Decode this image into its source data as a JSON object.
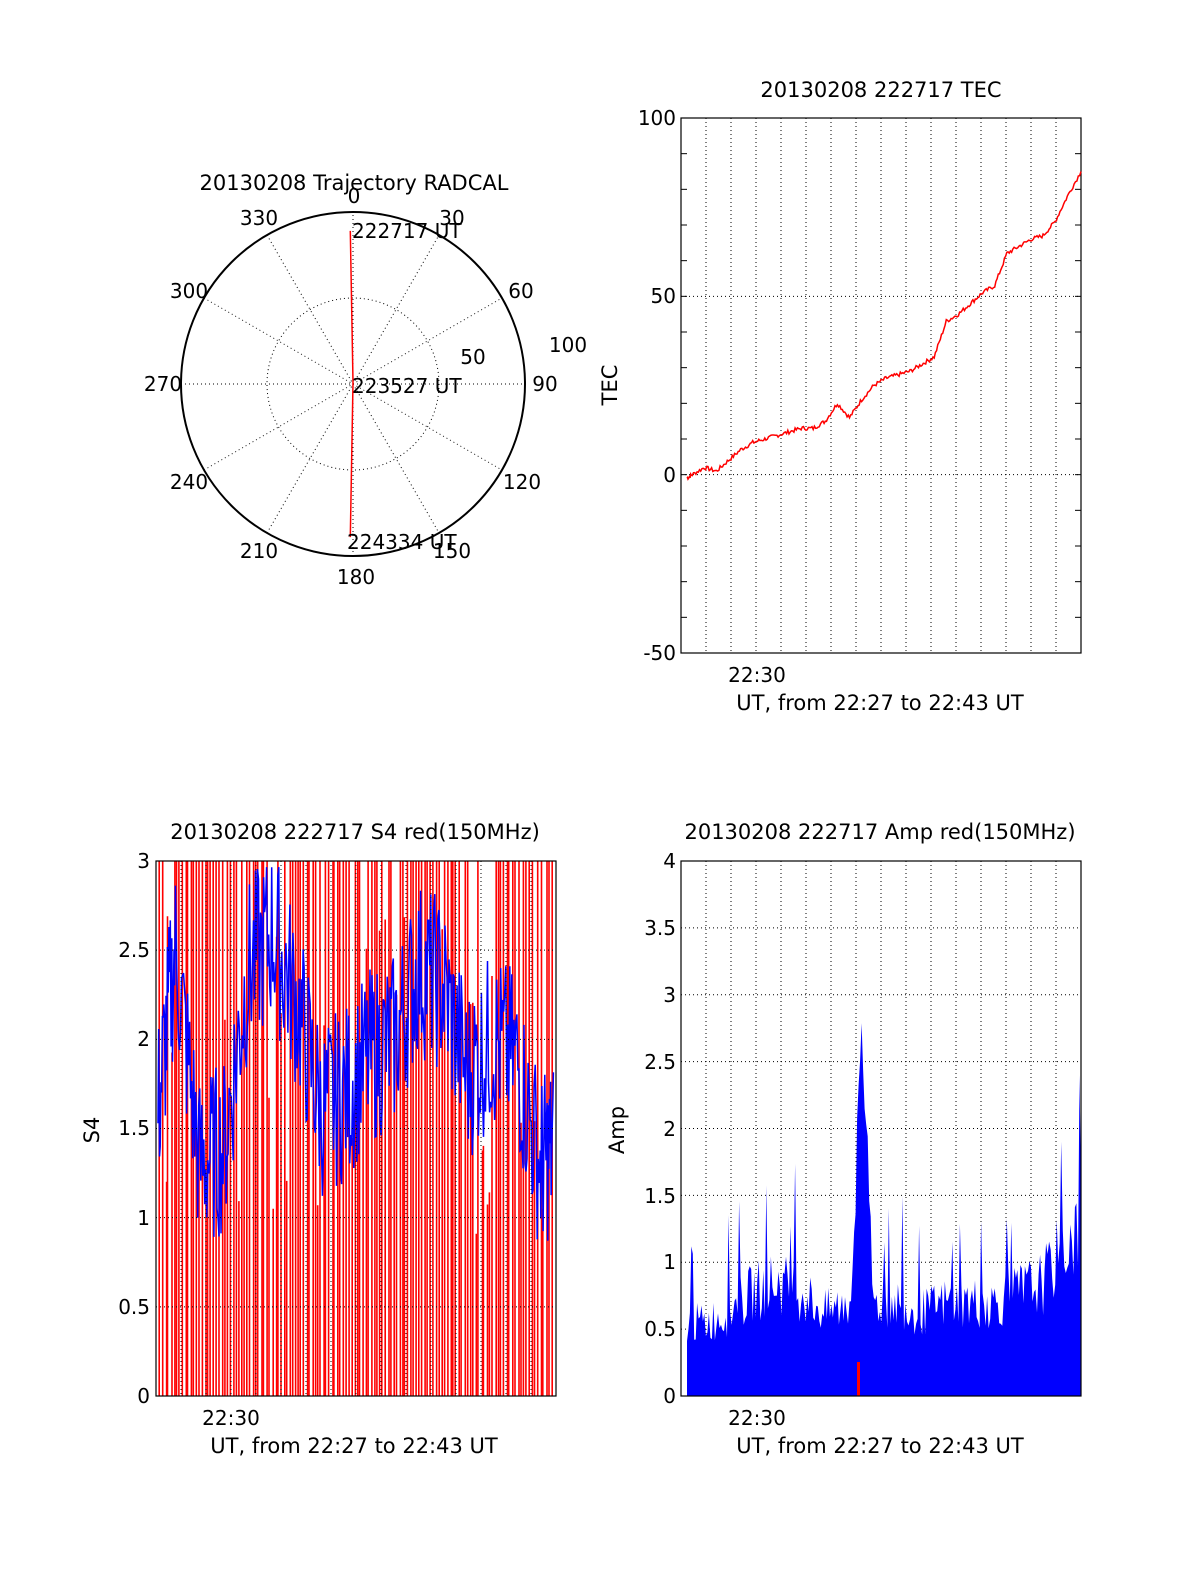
{
  "colors": {
    "red": "#ff0000",
    "blue": "#0000ff",
    "black": "#000000",
    "background": "#ffffff"
  },
  "polar": {
    "title": "20130208 Trajectory RADCAL",
    "azimuth_labels": [
      "0",
      "30",
      "60",
      "90",
      "120",
      "150",
      "180",
      "210",
      "240",
      "270",
      "300",
      "330"
    ],
    "radius_labels": [
      "50",
      "100"
    ],
    "time_labels": [
      "222717 UT",
      "223527 UT",
      "224334 UT"
    ]
  },
  "tec": {
    "title": "20130208 222717 TEC",
    "ylabel": "TEC",
    "xlabel": "UT, from 22:27 to 22:43 UT",
    "yticks": [
      "100",
      "50",
      "0",
      "-50"
    ],
    "xtick": "22:30"
  },
  "s4": {
    "title": "20130208 222717 S4 red(150MHz)",
    "ylabel": "S4",
    "xlabel": "UT, from 22:27 to 22:43 UT",
    "yticks": [
      "3",
      "2.5",
      "2",
      "1.5",
      "1",
      "0.5",
      "0"
    ],
    "xtick": "22:30"
  },
  "amp": {
    "title": "20130208 222717 Amp red(150MHz)",
    "ylabel": "Amp",
    "xlabel": "UT, from 22:27 to 22:43 UT",
    "yticks": [
      "4",
      "3.5",
      "3",
      "2.5",
      "2",
      "1.5",
      "1",
      "0.5",
      "0"
    ],
    "xtick": "22:30"
  },
  "chart_data": [
    {
      "type": "scatter",
      "title": "20130208 Trajectory RADCAL",
      "projection": "polar",
      "theta_unit": "degrees azimuth",
      "r_unit": "degrees from zenith",
      "rlim": [
        0,
        100
      ],
      "grid": true,
      "series": [
        {
          "points": [
            {
              "t": "222717 UT",
              "az": 359,
              "r": 89
            },
            {
              "t": "223527 UT",
              "az": 0,
              "r": 1
            },
            {
              "t": "224334 UT",
              "az": 181,
              "r": 89
            }
          ]
        }
      ]
    },
    {
      "type": "line",
      "title": "20130208 222717 TEC",
      "xlabel": "UT, from 22:27 to 22:43 UT",
      "ylabel": "TEC",
      "xlim": [
        "22:27:17",
        "22:43:34"
      ],
      "ylim": [
        -50,
        100
      ],
      "grid": true,
      "x": [
        "22:27:17",
        "22:27:30",
        "22:28:00",
        "22:28:30",
        "22:29:00",
        "22:29:30",
        "22:30:00",
        "22:30:30",
        "22:31:00",
        "22:31:30",
        "22:32:00",
        "22:32:30",
        "22:33:00",
        "22:33:30",
        "22:34:00",
        "22:34:30",
        "22:35:00",
        "22:35:30",
        "22:36:00",
        "22:36:30",
        "22:37:00",
        "22:37:30",
        "22:38:00",
        "22:38:30",
        "22:39:00",
        "22:39:30",
        "22:40:00",
        "22:40:30",
        "22:41:00",
        "22:41:30",
        "22:42:00",
        "22:42:30",
        "22:43:00",
        "22:43:34"
      ],
      "series": [
        {
          "values": [
            -1,
            0,
            2,
            1,
            4,
            7,
            9,
            10,
            11,
            12,
            13,
            13,
            15,
            20,
            16,
            21,
            25,
            27,
            28,
            29,
            31,
            33,
            43,
            45,
            48,
            51,
            53,
            62,
            64,
            66,
            67,
            71,
            78,
            85
          ]
        }
      ]
    },
    {
      "type": "line",
      "title": "20130208 222717 S4 red(150MHz)",
      "xlabel": "UT, from 22:27 to 22:43 UT",
      "ylabel": "S4",
      "xlim": [
        "22:27:17",
        "22:43:34"
      ],
      "ylim": [
        0,
        3
      ],
      "grid": true,
      "note_series": "red: raw S4 spikes spanning 0-3; blue: smoothed S4",
      "x": [
        "22:27:17",
        "22:28:00",
        "22:29:00",
        "22:30:00",
        "22:31:00",
        "22:32:00",
        "22:33:00",
        "22:34:00",
        "22:35:00",
        "22:36:00",
        "22:37:00",
        "22:38:00",
        "22:39:00",
        "22:40:00",
        "22:41:00",
        "22:42:00",
        "22:43:00",
        "22:43:34"
      ],
      "series": [
        {
          "values": [
            1.6,
            2.5,
            1.3,
            1.4,
            2.4,
            2.6,
            2.2,
            1.6,
            1.7,
            1.9,
            2.0,
            2.4,
            2.3,
            1.8,
            2.0,
            1.9,
            1.3,
            1.4
          ]
        },
        {
          "values": [
            3,
            0,
            3,
            0,
            3,
            0,
            3,
            0,
            3,
            0,
            3,
            0,
            3,
            0,
            3,
            0,
            3,
            0
          ]
        }
      ]
    },
    {
      "type": "line",
      "title": "20130208 222717 Amp red(150MHz)",
      "xlabel": "UT, from 22:27 to 22:43 UT",
      "ylabel": "Amp",
      "xlim": [
        "22:27:17",
        "22:43:34"
      ],
      "ylim": [
        0,
        4
      ],
      "grid": true,
      "x": [
        "22:27:17",
        "22:28:00",
        "22:29:00",
        "22:30:00",
        "22:31:00",
        "22:32:00",
        "22:33:00",
        "22:34:00",
        "22:34:30",
        "22:35:00",
        "22:36:00",
        "22:37:00",
        "22:38:00",
        "22:39:00",
        "22:40:00",
        "22:41:00",
        "22:42:00",
        "22:43:00",
        "22:43:34"
      ],
      "series": [
        {
          "values": [
            0.7,
            0.7,
            0.8,
            1.0,
            1.1,
            1.0,
            0.8,
            0.9,
            3.0,
            0.9,
            0.9,
            0.8,
            0.9,
            0.9,
            0.9,
            1.0,
            1.1,
            1.5,
            1.6
          ]
        }
      ]
    }
  ]
}
